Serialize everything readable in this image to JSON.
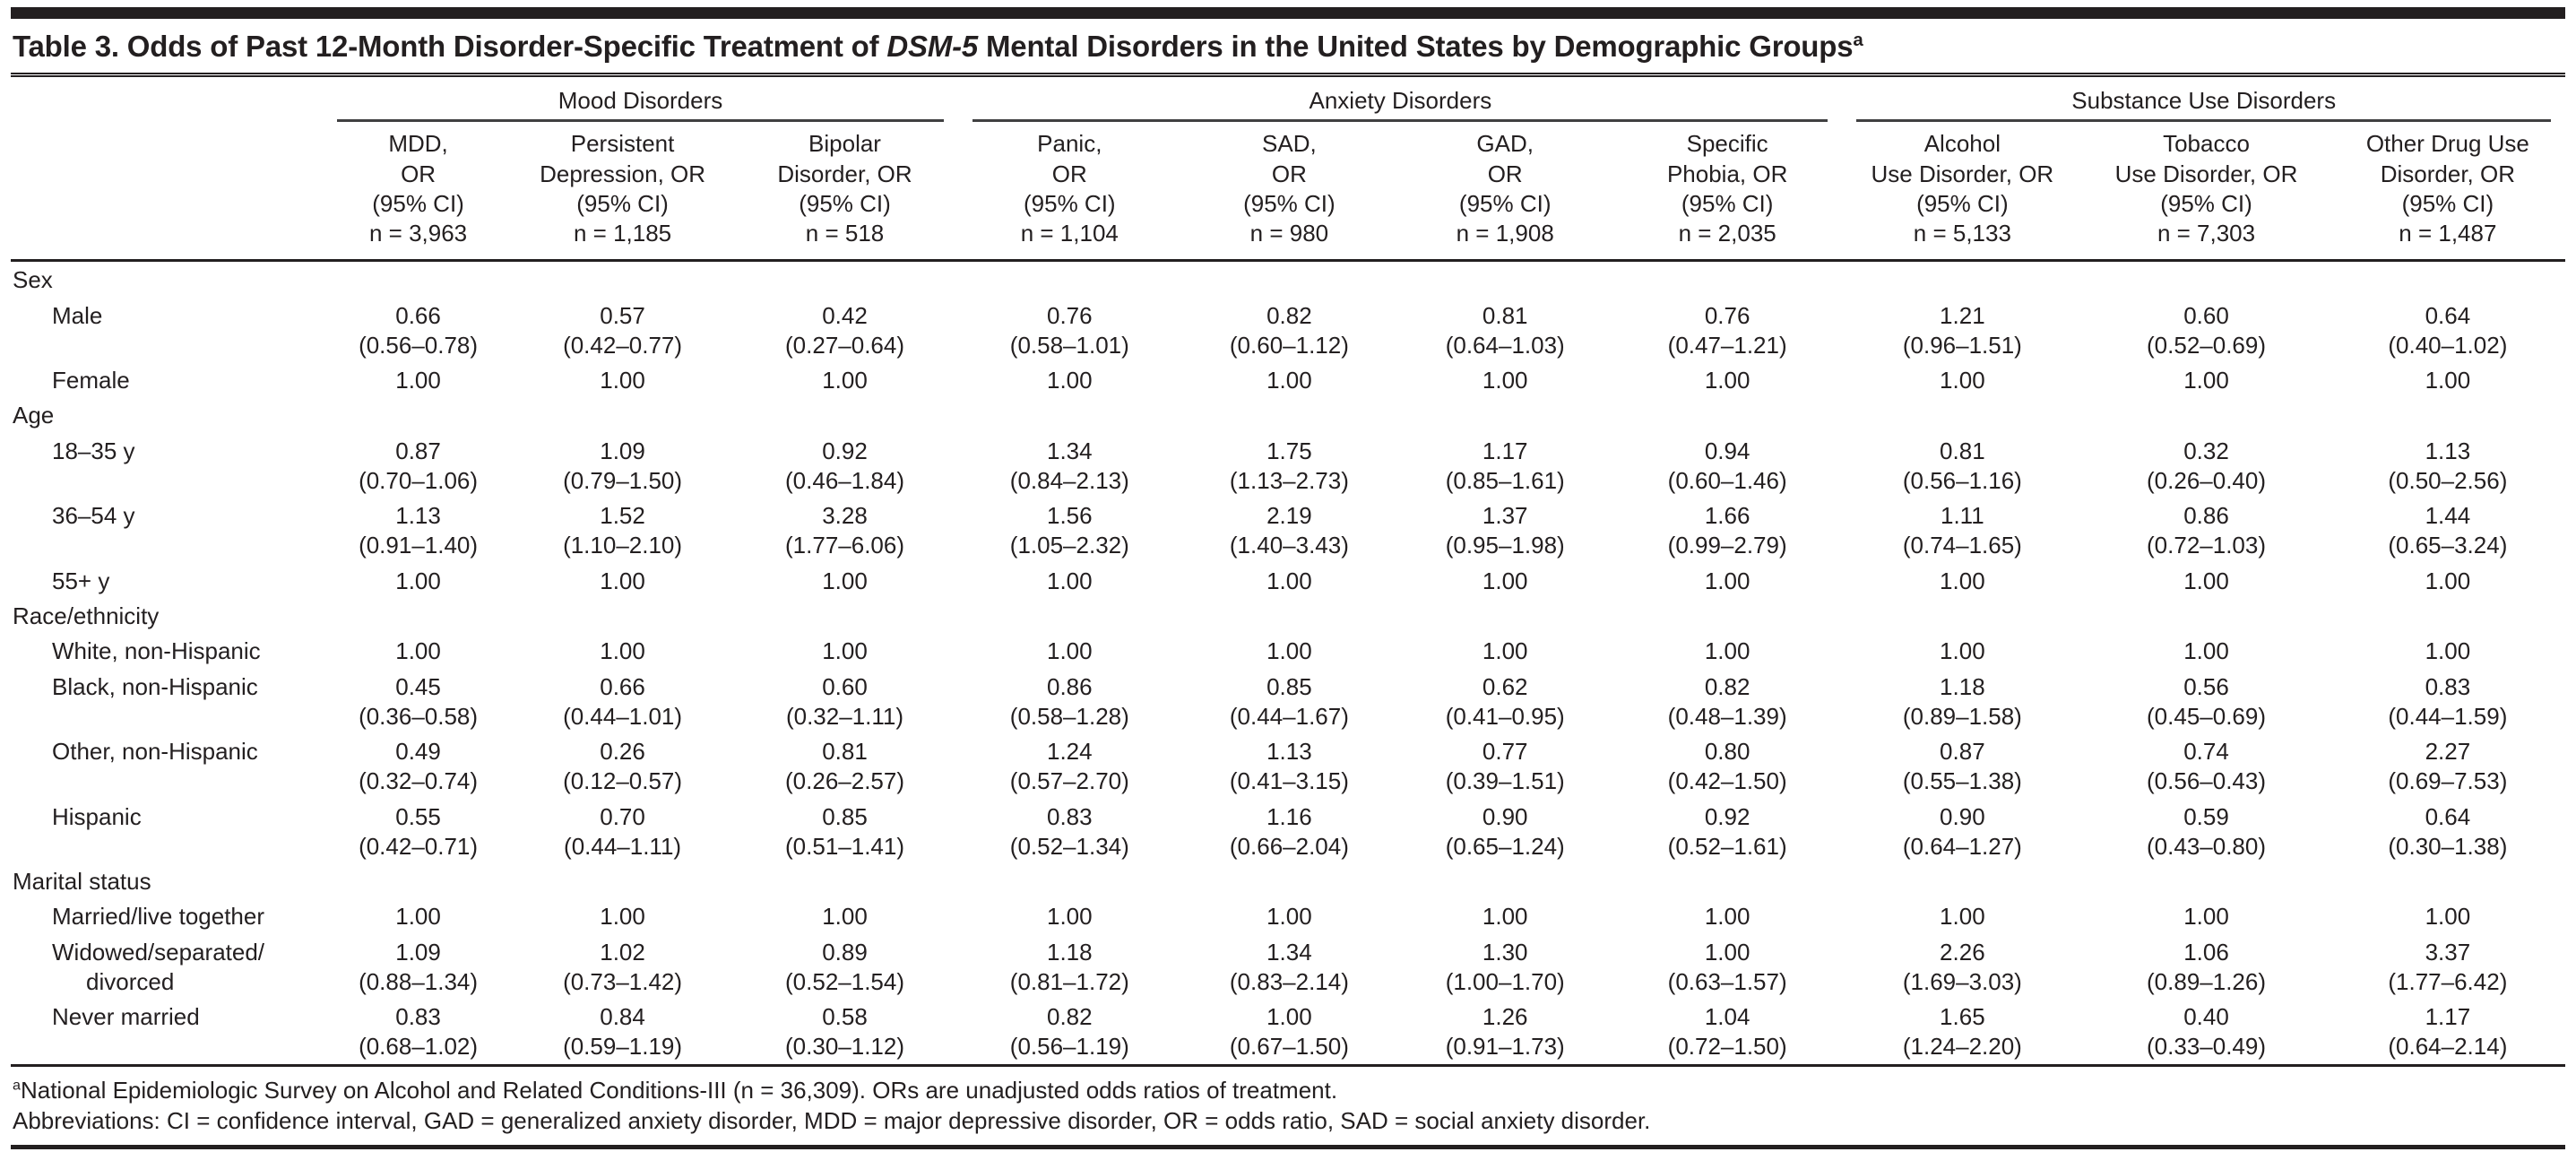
{
  "title": {
    "prefix": "Table 3. Odds of Past 12-Month Disorder-Specific Treatment of ",
    "italic": "DSM-5",
    "suffix": " Mental Disorders in the United States by Demographic Groups",
    "sup": "a"
  },
  "column_groups": [
    {
      "label": "Mood Disorders",
      "span": 3
    },
    {
      "label": "Anxiety Disorders",
      "span": 4
    },
    {
      "label": "Substance Use Disorders",
      "span": 3
    }
  ],
  "columns": [
    {
      "lines": [
        "MDD,",
        "OR",
        "(95% CI)",
        "n = 3,963"
      ]
    },
    {
      "lines": [
        "Persistent",
        "Depression, OR",
        "(95% CI)",
        "n = 1,185"
      ]
    },
    {
      "lines": [
        "Bipolar",
        "Disorder, OR",
        "(95% CI)",
        "n = 518"
      ]
    },
    {
      "lines": [
        "Panic,",
        "OR",
        "(95% CI)",
        "n = 1,104"
      ]
    },
    {
      "lines": [
        "SAD,",
        "OR",
        "(95% CI)",
        "n = 980"
      ]
    },
    {
      "lines": [
        "GAD,",
        "OR",
        "(95% CI)",
        "n = 1,908"
      ]
    },
    {
      "lines": [
        "Specific",
        "Phobia, OR",
        "(95% CI)",
        "n = 2,035"
      ]
    },
    {
      "lines": [
        "Alcohol",
        "Use Disorder, OR",
        "(95% CI)",
        "n = 5,133"
      ]
    },
    {
      "lines": [
        "Tobacco",
        "Use Disorder, OR",
        "(95% CI)",
        "n = 7,303"
      ]
    },
    {
      "lines": [
        "Other Drug Use",
        "Disorder, OR",
        "(95% CI)",
        "n = 1,487"
      ]
    }
  ],
  "rows": [
    {
      "type": "section",
      "label": "Sex"
    },
    {
      "type": "data",
      "label": [
        "Male"
      ],
      "cells": [
        [
          "0.66",
          "(0.56–0.78)"
        ],
        [
          "0.57",
          "(0.42–0.77)"
        ],
        [
          "0.42",
          "(0.27–0.64)"
        ],
        [
          "0.76",
          "(0.58–1.01)"
        ],
        [
          "0.82",
          "(0.60–1.12)"
        ],
        [
          "0.81",
          "(0.64–1.03)"
        ],
        [
          "0.76",
          "(0.47–1.21)"
        ],
        [
          "1.21",
          "(0.96–1.51)"
        ],
        [
          "0.60",
          "(0.52–0.69)"
        ],
        [
          "0.64",
          "(0.40–1.02)"
        ]
      ]
    },
    {
      "type": "data",
      "label": [
        "Female"
      ],
      "cells": [
        [
          "1.00"
        ],
        [
          "1.00"
        ],
        [
          "1.00"
        ],
        [
          "1.00"
        ],
        [
          "1.00"
        ],
        [
          "1.00"
        ],
        [
          "1.00"
        ],
        [
          "1.00"
        ],
        [
          "1.00"
        ],
        [
          "1.00"
        ]
      ]
    },
    {
      "type": "section",
      "label": "Age"
    },
    {
      "type": "data",
      "label": [
        "18–35 y"
      ],
      "cells": [
        [
          "0.87",
          "(0.70–1.06)"
        ],
        [
          "1.09",
          "(0.79–1.50)"
        ],
        [
          "0.92",
          "(0.46–1.84)"
        ],
        [
          "1.34",
          "(0.84–2.13)"
        ],
        [
          "1.75",
          "(1.13–2.73)"
        ],
        [
          "1.17",
          "(0.85–1.61)"
        ],
        [
          "0.94",
          "(0.60–1.46)"
        ],
        [
          "0.81",
          "(0.56–1.16)"
        ],
        [
          "0.32",
          "(0.26–0.40)"
        ],
        [
          "1.13",
          "(0.50–2.56)"
        ]
      ]
    },
    {
      "type": "data",
      "label": [
        "36–54 y"
      ],
      "cells": [
        [
          "1.13",
          "(0.91–1.40)"
        ],
        [
          "1.52",
          "(1.10–2.10)"
        ],
        [
          "3.28",
          "(1.77–6.06)"
        ],
        [
          "1.56",
          "(1.05–2.32)"
        ],
        [
          "2.19",
          "(1.40–3.43)"
        ],
        [
          "1.37",
          "(0.95–1.98)"
        ],
        [
          "1.66",
          "(0.99–2.79)"
        ],
        [
          "1.11",
          "(0.74–1.65)"
        ],
        [
          "0.86",
          "(0.72–1.03)"
        ],
        [
          "1.44",
          "(0.65–3.24)"
        ]
      ]
    },
    {
      "type": "data",
      "label": [
        "55+ y"
      ],
      "cells": [
        [
          "1.00"
        ],
        [
          "1.00"
        ],
        [
          "1.00"
        ],
        [
          "1.00"
        ],
        [
          "1.00"
        ],
        [
          "1.00"
        ],
        [
          "1.00"
        ],
        [
          "1.00"
        ],
        [
          "1.00"
        ],
        [
          "1.00"
        ]
      ]
    },
    {
      "type": "section",
      "label": "Race/ethnicity"
    },
    {
      "type": "data",
      "label": [
        "White, non-Hispanic"
      ],
      "cells": [
        [
          "1.00"
        ],
        [
          "1.00"
        ],
        [
          "1.00"
        ],
        [
          "1.00"
        ],
        [
          "1.00"
        ],
        [
          "1.00"
        ],
        [
          "1.00"
        ],
        [
          "1.00"
        ],
        [
          "1.00"
        ],
        [
          "1.00"
        ]
      ]
    },
    {
      "type": "data",
      "label": [
        "Black, non-Hispanic"
      ],
      "cells": [
        [
          "0.45",
          "(0.36–0.58)"
        ],
        [
          "0.66",
          "(0.44–1.01)"
        ],
        [
          "0.60",
          "(0.32–1.11)"
        ],
        [
          "0.86",
          "(0.58–1.28)"
        ],
        [
          "0.85",
          "(0.44–1.67)"
        ],
        [
          "0.62",
          "(0.41–0.95)"
        ],
        [
          "0.82",
          "(0.48–1.39)"
        ],
        [
          "1.18",
          "(0.89–1.58)"
        ],
        [
          "0.56",
          "(0.45–0.69)"
        ],
        [
          "0.83",
          "(0.44–1.59)"
        ]
      ]
    },
    {
      "type": "data",
      "label": [
        "Other, non-Hispanic"
      ],
      "cells": [
        [
          "0.49",
          "(0.32–0.74)"
        ],
        [
          "0.26",
          "(0.12–0.57)"
        ],
        [
          "0.81",
          "(0.26–2.57)"
        ],
        [
          "1.24",
          "(0.57–2.70)"
        ],
        [
          "1.13",
          "(0.41–3.15)"
        ],
        [
          "0.77",
          "(0.39–1.51)"
        ],
        [
          "0.80",
          "(0.42–1.50)"
        ],
        [
          "0.87",
          "(0.55–1.38)"
        ],
        [
          "0.74",
          "(0.56–0.43)"
        ],
        [
          "2.27",
          "(0.69–7.53)"
        ]
      ]
    },
    {
      "type": "data",
      "label": [
        "Hispanic"
      ],
      "cells": [
        [
          "0.55",
          "(0.42–0.71)"
        ],
        [
          "0.70",
          "(0.44–1.11)"
        ],
        [
          "0.85",
          "(0.51–1.41)"
        ],
        [
          "0.83",
          "(0.52–1.34)"
        ],
        [
          "1.16",
          "(0.66–2.04)"
        ],
        [
          "0.90",
          "(0.65–1.24)"
        ],
        [
          "0.92",
          "(0.52–1.61)"
        ],
        [
          "0.90",
          "(0.64–1.27)"
        ],
        [
          "0.59",
          "(0.43–0.80)"
        ],
        [
          "0.64",
          "(0.30–1.38)"
        ]
      ]
    },
    {
      "type": "section",
      "label": "Marital status"
    },
    {
      "type": "data",
      "label": [
        "Married/live together"
      ],
      "cells": [
        [
          "1.00"
        ],
        [
          "1.00"
        ],
        [
          "1.00"
        ],
        [
          "1.00"
        ],
        [
          "1.00"
        ],
        [
          "1.00"
        ],
        [
          "1.00"
        ],
        [
          "1.00"
        ],
        [
          "1.00"
        ],
        [
          "1.00"
        ]
      ]
    },
    {
      "type": "data",
      "label": [
        "Widowed/separated/",
        "divorced"
      ],
      "cells": [
        [
          "1.09",
          "(0.88–1.34)"
        ],
        [
          "1.02",
          "(0.73–1.42)"
        ],
        [
          "0.89",
          "(0.52–1.54)"
        ],
        [
          "1.18",
          "(0.81–1.72)"
        ],
        [
          "1.34",
          "(0.83–2.14)"
        ],
        [
          "1.30",
          "(1.00–1.70)"
        ],
        [
          "1.00",
          "(0.63–1.57)"
        ],
        [
          "2.26",
          "(1.69–3.03)"
        ],
        [
          "1.06",
          "(0.89–1.26)"
        ],
        [
          "3.37",
          "(1.77–6.42)"
        ]
      ]
    },
    {
      "type": "data",
      "label": [
        "Never married"
      ],
      "cells": [
        [
          "0.83",
          "(0.68–1.02)"
        ],
        [
          "0.84",
          "(0.59–1.19)"
        ],
        [
          "0.58",
          "(0.30–1.12)"
        ],
        [
          "0.82",
          "(0.56–1.19)"
        ],
        [
          "1.00",
          "(0.67–1.50)"
        ],
        [
          "1.26",
          "(0.91–1.73)"
        ],
        [
          "1.04",
          "(0.72–1.50)"
        ],
        [
          "1.65",
          "(1.24–2.20)"
        ],
        [
          "0.40",
          "(0.33–0.49)"
        ],
        [
          "1.17",
          "(0.64–2.14)"
        ]
      ]
    }
  ],
  "footnotes": [
    {
      "sup": "a",
      "text": "National Epidemiologic Survey on Alcohol and Related Conditions-III (n = 36,309). ORs are unadjusted odds ratios of treatment."
    },
    {
      "sup": "",
      "text": "Abbreviations: CI = confidence interval, GAD = generalized anxiety disorder, MDD = major depressive disorder, OR = odds ratio, SAD = social anxiety disorder."
    }
  ]
}
